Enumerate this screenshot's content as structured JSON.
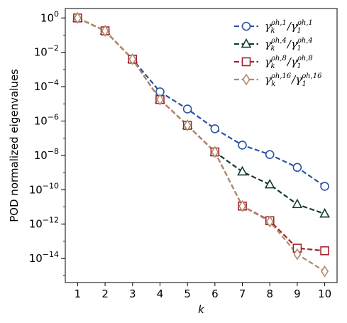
{
  "chart_data": {
    "type": "line",
    "xlabel": "k",
    "ylabel": "POD normalized eigenvalues",
    "yscale": "log",
    "xlim": [
      0.55,
      10.45
    ],
    "ylim_log10": [
      -15.4,
      0.55
    ],
    "x": [
      1,
      2,
      3,
      4,
      5,
      6,
      7,
      8,
      9,
      10
    ],
    "xticks": [
      "1",
      "2",
      "3",
      "4",
      "5",
      "6",
      "7",
      "8",
      "9",
      "10"
    ],
    "yticks": [
      {
        "base": "10",
        "exp": "0",
        "log": 0
      },
      {
        "base": "10",
        "exp": "−2",
        "log": -2
      },
      {
        "base": "10",
        "exp": "−4",
        "log": -4
      },
      {
        "base": "10",
        "exp": "−6",
        "log": -6
      },
      {
        "base": "10",
        "exp": "−8",
        "log": -8
      },
      {
        "base": "10",
        "exp": "−10",
        "log": -10
      },
      {
        "base": "10",
        "exp": "−12",
        "log": -12
      },
      {
        "base": "10",
        "exp": "−14",
        "log": -14
      }
    ],
    "legend_placement": "top-right",
    "grid": false,
    "series": [
      {
        "key": "s1",
        "color": "#2a52a0",
        "marker": "circle",
        "legend": {
          "sup_num": "ρh,1",
          "sup_den": "ρh,1"
        },
        "values_log10": [
          0.0,
          -0.75,
          -2.4,
          -4.3,
          -5.3,
          -6.45,
          -7.4,
          -7.95,
          -8.7,
          -9.8
        ]
      },
      {
        "key": "s4",
        "color": "#143c28",
        "marker": "triangle",
        "legend": {
          "sup_num": "ρh,4",
          "sup_den": "ρh,4"
        },
        "values_log10": [
          0.0,
          -0.75,
          -2.4,
          -4.75,
          -6.25,
          -7.8,
          -8.95,
          -9.7,
          -10.85,
          -11.4
        ]
      },
      {
        "key": "s8",
        "color": "#a0222a",
        "marker": "square",
        "legend": {
          "sup_num": "ρh,8",
          "sup_den": "ρh,8"
        },
        "values_log10": [
          0.0,
          -0.75,
          -2.4,
          -4.75,
          -6.25,
          -7.8,
          -10.95,
          -11.8,
          -13.4,
          -13.55
        ]
      },
      {
        "key": "s16",
        "color": "#b08a6a",
        "marker": "diamond",
        "legend": {
          "sup_num": "ρh,16",
          "sup_den": "ρh,16"
        },
        "values_log10": [
          0.0,
          -0.75,
          -2.4,
          -4.75,
          -6.25,
          -7.8,
          -10.95,
          -11.85,
          -13.75,
          -14.75
        ]
      }
    ]
  }
}
